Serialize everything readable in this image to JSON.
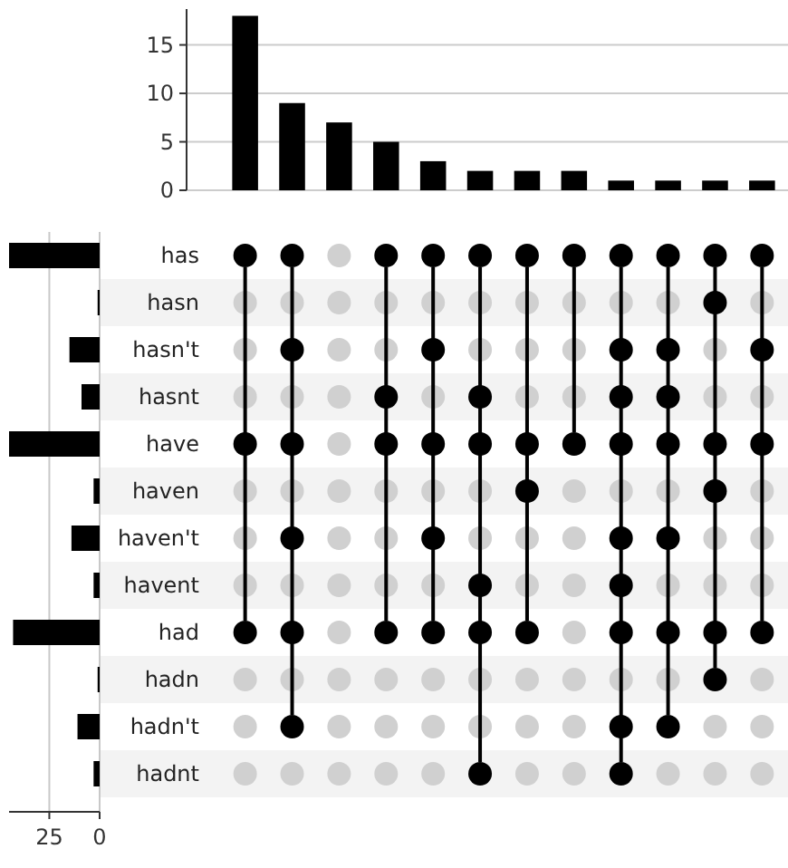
{
  "chart_data": [
    {
      "type": "bar",
      "categories": [
        null,
        null,
        null,
        null,
        null,
        null,
        null,
        null,
        null,
        null,
        null,
        null
      ],
      "values": [
        18,
        9,
        7,
        5,
        3,
        2,
        2,
        2,
        1,
        1,
        1,
        1
      ],
      "color": "#000000",
      "ylim": [
        0,
        18.7
      ],
      "yticks": [
        0,
        5,
        10,
        15
      ],
      "grid": "y"
    },
    {
      "type": "bar",
      "orientation": "horizontal",
      "categories": [
        "has",
        "hasn",
        "hasn't",
        "hasnt",
        "have",
        "haven",
        "haven't",
        "havent",
        "had",
        "hadn",
        "hadn't",
        "hadnt"
      ],
      "values": [
        45,
        1,
        15,
        9,
        45,
        3,
        14,
        3,
        43,
        1,
        11,
        3
      ],
      "color": "#000000",
      "xlim": [
        45,
        0
      ],
      "xticks": [
        25,
        0
      ],
      "grid": "x"
    },
    {
      "type": "heatmap",
      "categories": [
        null,
        null,
        null,
        null,
        null,
        null,
        null,
        null,
        null,
        null,
        null,
        null
      ],
      "y_categories": [
        null,
        null,
        null,
        null,
        null,
        null,
        null,
        null,
        null,
        null,
        null,
        null
      ],
      "grid": true,
      "cells": [
        [
          true,
          true,
          false,
          true,
          true,
          true,
          true,
          true,
          true,
          true,
          true,
          true
        ],
        [
          false,
          false,
          false,
          false,
          false,
          false,
          false,
          false,
          false,
          false,
          true,
          false
        ],
        [
          false,
          true,
          false,
          false,
          true,
          false,
          false,
          false,
          true,
          true,
          false,
          true
        ],
        [
          false,
          false,
          false,
          true,
          false,
          true,
          false,
          false,
          true,
          true,
          false,
          false
        ],
        [
          true,
          true,
          false,
          true,
          true,
          true,
          true,
          true,
          true,
          true,
          true,
          true
        ],
        [
          false,
          false,
          false,
          false,
          false,
          false,
          true,
          false,
          false,
          false,
          true,
          false
        ],
        [
          false,
          true,
          false,
          false,
          true,
          false,
          false,
          false,
          true,
          true,
          false,
          false
        ],
        [
          false,
          false,
          false,
          false,
          false,
          true,
          false,
          false,
          true,
          false,
          false,
          false
        ],
        [
          true,
          true,
          false,
          true,
          true,
          true,
          true,
          false,
          true,
          true,
          true,
          true
        ],
        [
          false,
          false,
          false,
          false,
          false,
          false,
          false,
          false,
          false,
          false,
          true,
          false
        ],
        [
          false,
          true,
          false,
          false,
          false,
          false,
          false,
          false,
          true,
          true,
          false,
          false
        ],
        [
          false,
          false,
          false,
          false,
          false,
          true,
          false,
          false,
          true,
          false,
          false,
          false
        ]
      ],
      "color": "#000000"
    }
  ]
}
